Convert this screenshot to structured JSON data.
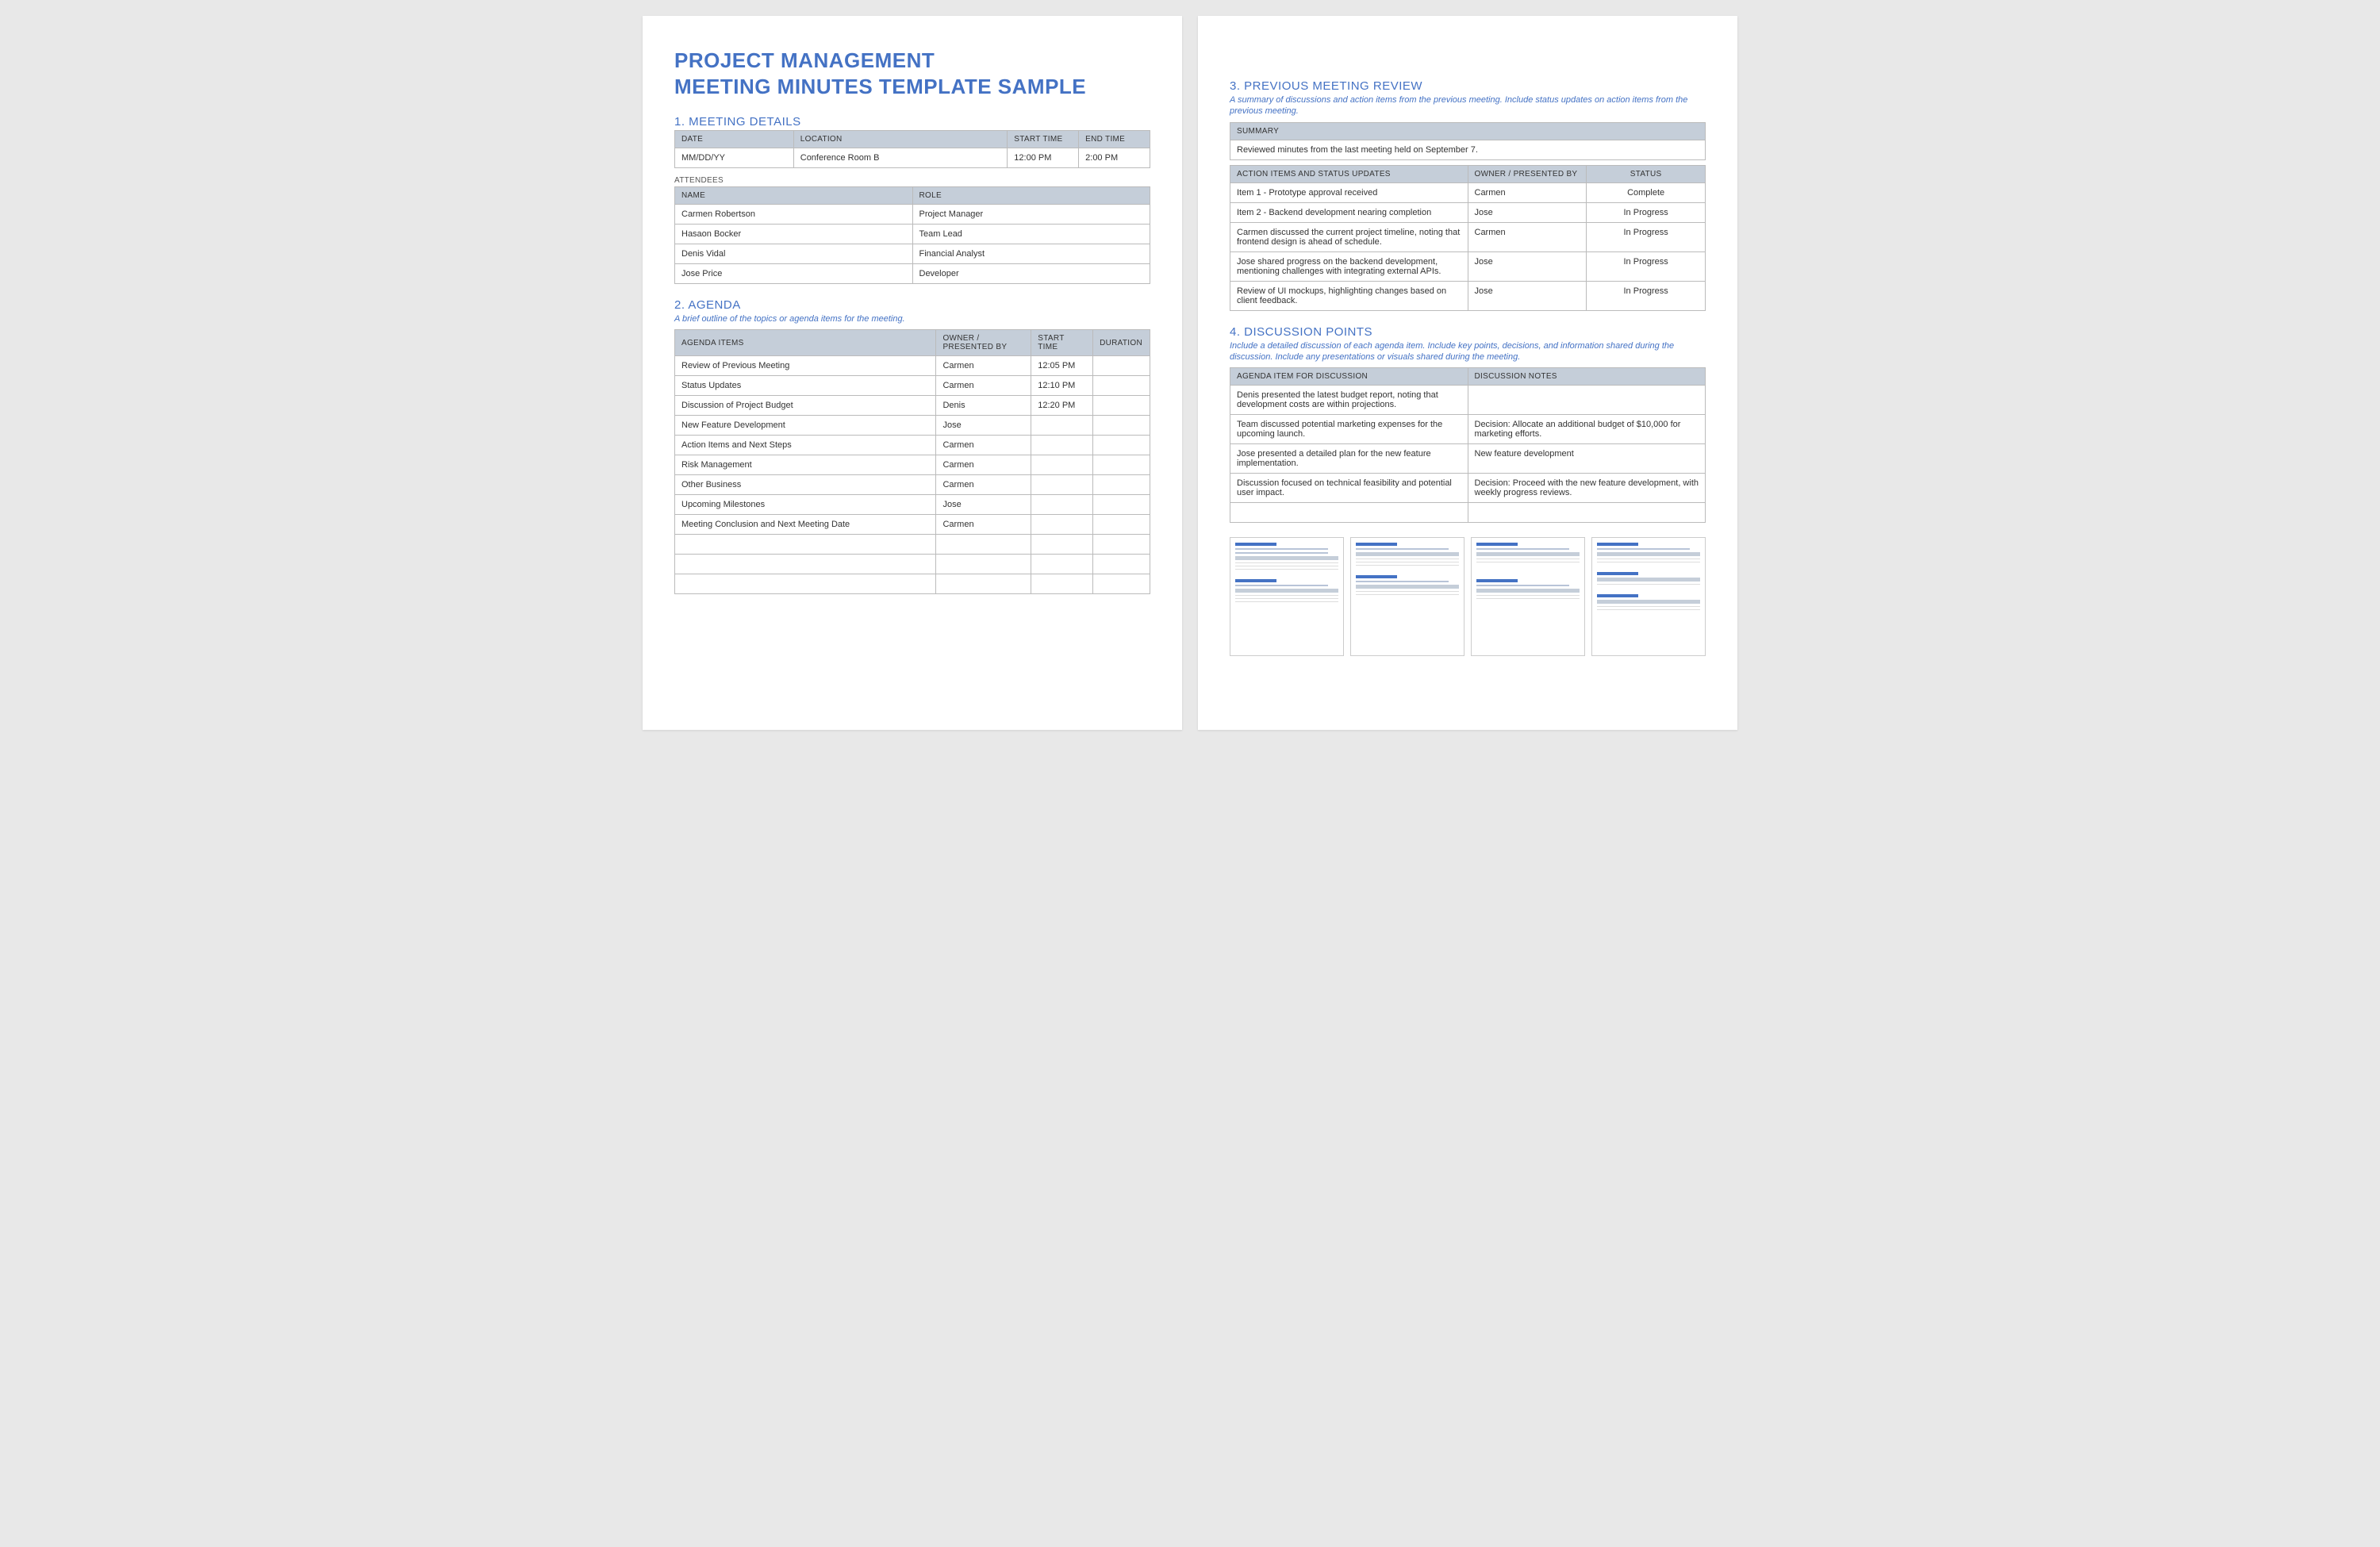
{
  "title_line1": "PROJECT MANAGEMENT",
  "title_line2": "MEETING MINUTES TEMPLATE SAMPLE",
  "colors": {
    "accent": "#4472c4",
    "header_bg": "#c5ced9",
    "border": "#bbbbbb",
    "page_bg": "#ffffff",
    "canvas_bg": "#e8e8e8"
  },
  "s1": {
    "title": "1. MEETING DETAILS",
    "headers": {
      "date": "DATE",
      "location": "LOCATION",
      "start": "START TIME",
      "end": "END TIME"
    },
    "row": {
      "date": "MM/DD/YY",
      "location": "Conference Room B",
      "start": "12:00 PM",
      "end": "2:00 PM"
    },
    "attendees_label": "ATTENDEES",
    "att_headers": {
      "name": "NAME",
      "role": "ROLE"
    },
    "attendees": [
      {
        "name": "Carmen Robertson",
        "role": "Project Manager"
      },
      {
        "name": "Hasaon Bocker",
        "role": "Team Lead"
      },
      {
        "name": "Denis Vidal",
        "role": "Financial Analyst"
      },
      {
        "name": "Jose Price",
        "role": "Developer"
      }
    ]
  },
  "s2": {
    "title": "2. AGENDA",
    "desc": "A brief outline of the topics or agenda items for the meeting.",
    "headers": {
      "item": "AGENDA ITEMS",
      "owner": "OWNER / PRESENTED BY",
      "start": "START TIME",
      "dur": "DURATION"
    },
    "rows": [
      {
        "item": "Review of Previous Meeting",
        "owner": "Carmen",
        "start": "12:05 PM",
        "dur": ""
      },
      {
        "item": "Status Updates",
        "owner": "Carmen",
        "start": "12:10 PM",
        "dur": ""
      },
      {
        "item": "Discussion of Project Budget",
        "owner": "Denis",
        "start": "12:20 PM",
        "dur": ""
      },
      {
        "item": "New Feature Development",
        "owner": "Jose",
        "start": "",
        "dur": ""
      },
      {
        "item": "Action Items and Next Steps",
        "owner": "Carmen",
        "start": "",
        "dur": ""
      },
      {
        "item": "Risk Management",
        "owner": "Carmen",
        "start": "",
        "dur": ""
      },
      {
        "item": "Other Business",
        "owner": "Carmen",
        "start": "",
        "dur": ""
      },
      {
        "item": "Upcoming Milestones",
        "owner": "Jose",
        "start": "",
        "dur": ""
      },
      {
        "item": "Meeting Conclusion and Next Meeting Date",
        "owner": "Carmen",
        "start": "",
        "dur": ""
      },
      {
        "item": "",
        "owner": "",
        "start": "",
        "dur": ""
      },
      {
        "item": "",
        "owner": "",
        "start": "",
        "dur": ""
      },
      {
        "item": "",
        "owner": "",
        "start": "",
        "dur": ""
      }
    ]
  },
  "s3": {
    "title": "3. PREVIOUS MEETING REVIEW",
    "desc": "A summary of discussions and action items from the previous meeting. Include status updates on action items from the previous meeting.",
    "summary_header": "SUMMARY",
    "summary": "Reviewed minutes from the last meeting held on September 7.",
    "headers": {
      "item": "ACTION ITEMS AND STATUS UPDATES",
      "owner": "OWNER / PRESENTED BY",
      "status": "STATUS"
    },
    "rows": [
      {
        "item": "Item 1 - Prototype approval received",
        "owner": "Carmen",
        "status": "Complete"
      },
      {
        "item": "Item 2 - Backend development nearing completion",
        "owner": "Jose",
        "status": "In Progress"
      },
      {
        "item": "Carmen discussed the current project timeline, noting that frontend design is ahead of schedule.",
        "owner": "Carmen",
        "status": "In Progress"
      },
      {
        "item": "Jose shared progress on the backend development, mentioning challenges with integrating external APIs.",
        "owner": "Jose",
        "status": "In Progress"
      },
      {
        "item": "Review of UI mockups, highlighting changes based on client feedback.",
        "owner": "Jose",
        "status": "In Progress"
      }
    ]
  },
  "s4": {
    "title": "4. DISCUSSION POINTS",
    "desc": "Include a detailed discussion of each agenda item. Include key points, decisions, and information shared during the discussion. Include any presentations or visuals shared during the meeting.",
    "headers": {
      "item": "AGENDA ITEM FOR DISCUSSION",
      "notes": "DISCUSSION NOTES"
    },
    "rows": [
      {
        "item": "Denis presented the latest budget report, noting that development costs are within projections.",
        "notes": ""
      },
      {
        "item": "Team discussed potential marketing expenses for the upcoming launch.",
        "notes": "Decision: Allocate an additional budget of $10,000 for marketing efforts."
      },
      {
        "item": "Jose presented a detailed plan for the new feature implementation.",
        "notes": "New feature development"
      },
      {
        "item": "Discussion focused on technical feasibility and potential user impact.",
        "notes": "Decision: Proceed with the new feature development, with weekly progress reviews."
      },
      {
        "item": "",
        "notes": ""
      }
    ]
  }
}
